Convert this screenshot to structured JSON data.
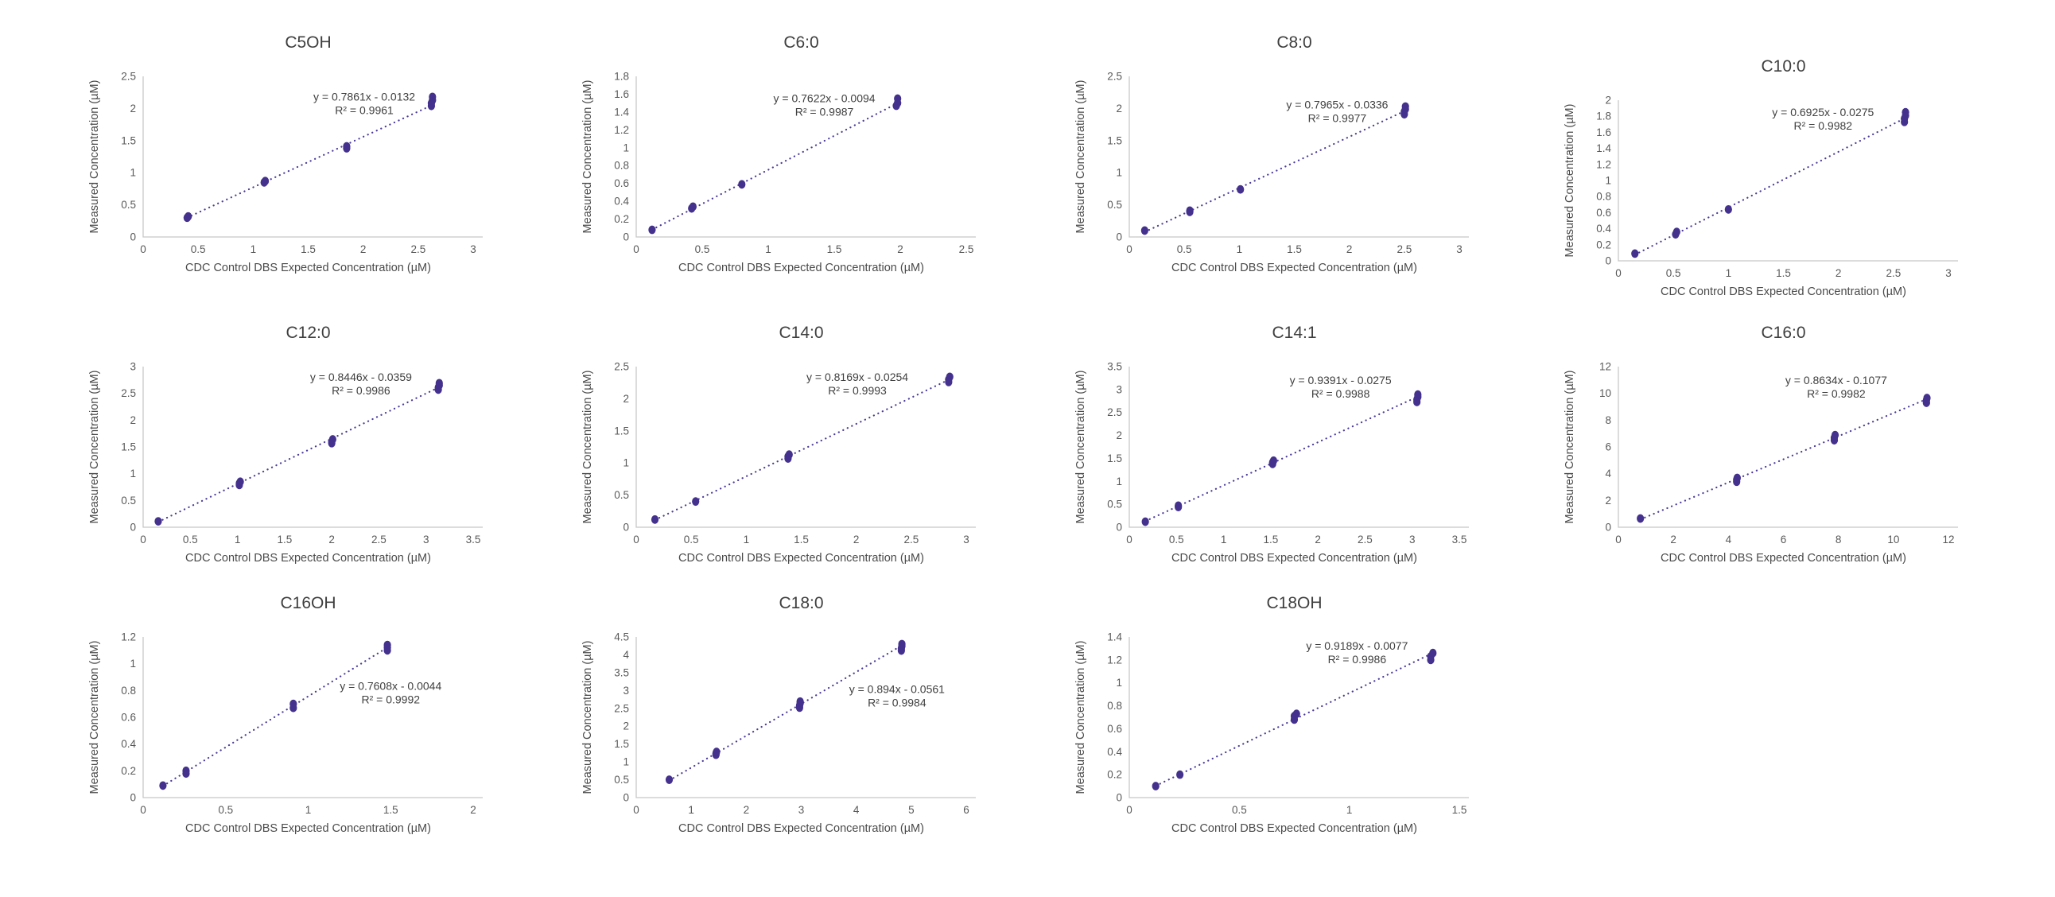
{
  "figure": {
    "background": "#ffffff",
    "description_labels": {
      "xlabel": "CDC Control DBS Expected Concentration (µM)",
      "ylabel": "Measured Concentration (µM)"
    }
  },
  "colors": {
    "marker": "#44318e",
    "trendline": "#4c3a99",
    "axis_line": "#c8c8c8",
    "tick_text": "#595959",
    "title_text": "#3f3f3f",
    "annotation_text": "#3f3f3f"
  },
  "chart_data": [
    {
      "type": "scatter",
      "title": "C5OH",
      "equation": "y = 0.7861x - 0.0132",
      "r2": "R² = 0.9961",
      "slope": 0.7861,
      "intercept": -0.0132,
      "xlabel": "CDC Control DBS Expected Concentration (µM)",
      "ylabel": "Measured Concentration (µM)",
      "xlim": [
        0,
        3
      ],
      "xstep": 0.5,
      "ylim": [
        0,
        2.5
      ],
      "ystep": 0.5,
      "grid": false,
      "points": [
        [
          0.4,
          0.3
        ],
        [
          0.41,
          0.32
        ],
        [
          1.1,
          0.85
        ],
        [
          1.11,
          0.87
        ],
        [
          1.85,
          1.38
        ],
        [
          1.85,
          1.41
        ],
        [
          2.62,
          2.04
        ],
        [
          2.62,
          2.08
        ],
        [
          2.63,
          2.13
        ],
        [
          2.63,
          2.18
        ]
      ],
      "trend_x": [
        0.4,
        2.6
      ],
      "ann_pos": [
        0.67,
        0.15
      ],
      "pos": [
        95,
        30
      ]
    },
    {
      "type": "scatter",
      "title": "C6:0",
      "equation": "y = 0.7622x - 0.0094",
      "r2": "R² = 0.9987",
      "slope": 0.7622,
      "intercept": -0.0094,
      "xlabel": "CDC Control DBS Expected Concentration (µM)",
      "ylabel": "Measured Concentration (µM)",
      "xlim": [
        0,
        2.5
      ],
      "xstep": 0.5,
      "ylim": [
        0,
        1.8
      ],
      "ystep": 0.2,
      "grid": false,
      "points": [
        [
          0.12,
          0.08
        ],
        [
          0.42,
          0.32
        ],
        [
          0.43,
          0.34
        ],
        [
          0.8,
          0.59
        ],
        [
          1.97,
          1.47
        ],
        [
          1.98,
          1.5
        ],
        [
          1.98,
          1.55
        ]
      ],
      "trend_x": [
        0.12,
        1.96
      ],
      "ann_pos": [
        0.57,
        0.16
      ],
      "pos": [
        715,
        30
      ]
    },
    {
      "type": "scatter",
      "title": "C8:0",
      "equation": "y = 0.7965x - 0.0336",
      "r2": "R² = 0.9977",
      "slope": 0.7965,
      "intercept": -0.0336,
      "xlabel": "CDC Control DBS Expected Concentration (µM)",
      "ylabel": "Measured Concentration (µM)",
      "xlim": [
        0,
        3
      ],
      "xstep": 0.5,
      "ylim": [
        0,
        2.5
      ],
      "ystep": 0.5,
      "grid": false,
      "points": [
        [
          0.14,
          0.1
        ],
        [
          0.55,
          0.39
        ],
        [
          0.55,
          0.41
        ],
        [
          1.01,
          0.74
        ],
        [
          2.5,
          1.91
        ],
        [
          2.5,
          1.95
        ],
        [
          2.51,
          1.99
        ],
        [
          2.51,
          2.03
        ]
      ],
      "trend_x": [
        0.14,
        2.48
      ],
      "ann_pos": [
        0.63,
        0.2
      ],
      "pos": [
        1335,
        30
      ]
    },
    {
      "type": "scatter",
      "title": "C10:0",
      "equation": "y = 0.6925x - 0.0275",
      "r2": "R² = 0.9982",
      "slope": 0.6925,
      "intercept": -0.0275,
      "xlabel": "CDC Control DBS Expected Concentration (µM)",
      "ylabel": "Measured Concentration (µM)",
      "xlim": [
        0,
        3
      ],
      "xstep": 0.5,
      "ylim": [
        0,
        2
      ],
      "ystep": 0.2,
      "grid": false,
      "points": [
        [
          0.15,
          0.09
        ],
        [
          0.52,
          0.33
        ],
        [
          0.53,
          0.36
        ],
        [
          1.0,
          0.64
        ],
        [
          2.6,
          1.73
        ],
        [
          2.6,
          1.77
        ],
        [
          2.61,
          1.81
        ],
        [
          2.61,
          1.85
        ]
      ],
      "trend_x": [
        0.15,
        2.58
      ],
      "ann_pos": [
        0.62,
        0.1
      ],
      "pos": [
        1950,
        60
      ]
    },
    {
      "type": "scatter",
      "title": "C12:0",
      "equation": "y = 0.8446x - 0.0359",
      "r2": "R² = 0.9986",
      "slope": 0.8446,
      "intercept": -0.0359,
      "xlabel": "CDC Control DBS Expected Concentration (µM)",
      "ylabel": "Measured Concentration (µM)",
      "xlim": [
        0,
        3.5
      ],
      "xstep": 0.5,
      "ylim": [
        0,
        3
      ],
      "ystep": 0.5,
      "grid": false,
      "points": [
        [
          0.16,
          0.11
        ],
        [
          1.02,
          0.79
        ],
        [
          1.02,
          0.82
        ],
        [
          1.03,
          0.85
        ],
        [
          2.0,
          1.57
        ],
        [
          2.0,
          1.6
        ],
        [
          2.01,
          1.64
        ],
        [
          3.13,
          2.57
        ],
        [
          3.13,
          2.61
        ],
        [
          3.14,
          2.65
        ],
        [
          3.14,
          2.69
        ]
      ],
      "trend_x": [
        0.16,
        3.1
      ],
      "ann_pos": [
        0.66,
        0.09
      ],
      "pos": [
        95,
        395
      ]
    },
    {
      "type": "scatter",
      "title": "C14:0",
      "equation": "y = 0.8169x - 0.0254",
      "r2": "R² = 0.9993",
      "slope": 0.8169,
      "intercept": -0.0254,
      "xlabel": "CDC Control DBS Expected Concentration (µM)",
      "ylabel": "Measured Concentration (µM)",
      "xlim": [
        0,
        3
      ],
      "xstep": 0.5,
      "ylim": [
        0,
        2.5
      ],
      "ystep": 0.5,
      "grid": false,
      "points": [
        [
          0.17,
          0.12
        ],
        [
          0.54,
          0.4
        ],
        [
          1.38,
          1.07
        ],
        [
          1.38,
          1.1
        ],
        [
          1.39,
          1.13
        ],
        [
          2.84,
          2.26
        ],
        [
          2.84,
          2.3
        ],
        [
          2.85,
          2.34
        ]
      ],
      "trend_x": [
        0.17,
        2.82
      ],
      "ann_pos": [
        0.67,
        0.09
      ],
      "pos": [
        715,
        395
      ]
    },
    {
      "type": "scatter",
      "title": "C14:1",
      "equation": "y = 0.9391x - 0.0275",
      "r2": "R² = 0.9988",
      "slope": 0.9391,
      "intercept": -0.0275,
      "xlabel": "CDC Control DBS Expected Concentration (µM)",
      "ylabel": "Measured Concentration (µM)",
      "xlim": [
        0,
        3.5
      ],
      "xstep": 0.5,
      "ylim": [
        0,
        3.5
      ],
      "ystep": 0.5,
      "grid": false,
      "points": [
        [
          0.17,
          0.12
        ],
        [
          0.52,
          0.44
        ],
        [
          0.52,
          0.47
        ],
        [
          1.52,
          1.38
        ],
        [
          1.52,
          1.41
        ],
        [
          1.53,
          1.45
        ],
        [
          3.05,
          2.73
        ],
        [
          3.05,
          2.78
        ],
        [
          3.06,
          2.84
        ],
        [
          3.06,
          2.89
        ]
      ],
      "trend_x": [
        0.17,
        3.02
      ],
      "ann_pos": [
        0.64,
        0.11
      ],
      "pos": [
        1335,
        395
      ]
    },
    {
      "type": "scatter",
      "title": "C16:0",
      "equation": "y = 0.8634x - 0.1077",
      "r2": "R² = 0.9982",
      "slope": 0.8634,
      "intercept": -0.1077,
      "xlabel": "CDC Control DBS Expected Concentration (µM)",
      "ylabel": "Measured Concentration (µM)",
      "xlim": [
        0,
        12
      ],
      "xstep": 2,
      "ylim": [
        0,
        12
      ],
      "ystep": 2,
      "grid": false,
      "points": [
        [
          0.8,
          0.65
        ],
        [
          4.3,
          3.4
        ],
        [
          4.3,
          3.55
        ],
        [
          4.32,
          3.68
        ],
        [
          7.85,
          6.5
        ],
        [
          7.85,
          6.68
        ],
        [
          7.88,
          6.88
        ],
        [
          11.2,
          9.3
        ],
        [
          11.2,
          9.48
        ],
        [
          11.22,
          9.65
        ]
      ],
      "trend_x": [
        0.8,
        11.1
      ],
      "ann_pos": [
        0.66,
        0.11
      ],
      "pos": [
        1950,
        395
      ]
    },
    {
      "type": "scatter",
      "title": "C16OH",
      "equation": "y = 0.7608x - 0.0044",
      "r2": "R² = 0.9992",
      "slope": 0.7608,
      "intercept": -0.0044,
      "xlabel": "CDC Control DBS Expected Concentration (µM)",
      "ylabel": "Measured Concentration (µM)",
      "xlim": [
        0,
        2
      ],
      "xstep": 0.5,
      "ylim": [
        0,
        1.2
      ],
      "ystep": 0.2,
      "grid": false,
      "points": [
        [
          0.12,
          0.09
        ],
        [
          0.26,
          0.18
        ],
        [
          0.26,
          0.2
        ],
        [
          0.91,
          0.67
        ],
        [
          0.91,
          0.7
        ],
        [
          1.48,
          1.1
        ],
        [
          1.48,
          1.12
        ],
        [
          1.48,
          1.14
        ]
      ],
      "trend_x": [
        0.12,
        1.46
      ],
      "ann_pos": [
        0.75,
        0.33
      ],
      "pos": [
        95,
        735
      ]
    },
    {
      "type": "scatter",
      "title": "C18:0",
      "equation": "y = 0.894x - 0.0561",
      "r2": "R² = 0.9984",
      "slope": 0.894,
      "intercept": -0.0561,
      "xlabel": "CDC Control DBS Expected Concentration (µM)",
      "ylabel": "Measured Concentration (µM)",
      "xlim": [
        0,
        6
      ],
      "xstep": 1,
      "ylim": [
        0,
        4.5
      ],
      "ystep": 0.5,
      "grid": false,
      "points": [
        [
          0.6,
          0.5
        ],
        [
          1.45,
          1.2
        ],
        [
          1.45,
          1.24
        ],
        [
          1.46,
          1.28
        ],
        [
          2.97,
          2.52
        ],
        [
          2.97,
          2.58
        ],
        [
          2.98,
          2.64
        ],
        [
          2.98,
          2.69
        ],
        [
          4.82,
          4.12
        ],
        [
          4.82,
          4.18
        ],
        [
          4.83,
          4.25
        ],
        [
          4.83,
          4.3
        ]
      ],
      "trend_x": [
        0.6,
        4.8
      ],
      "ann_pos": [
        0.79,
        0.35
      ],
      "pos": [
        715,
        735
      ]
    },
    {
      "type": "scatter",
      "title": "C18OH",
      "equation": "y = 0.9189x - 0.0077",
      "r2": "R² = 0.9986",
      "slope": 0.9189,
      "intercept": -0.0077,
      "xlabel": "CDC Control DBS Expected Concentration (µM)",
      "ylabel": "Measured Concentration (µM)",
      "xlim": [
        0,
        1.5
      ],
      "xstep": 0.5,
      "ylim": [
        0,
        1.4
      ],
      "ystep": 0.2,
      "grid": false,
      "points": [
        [
          0.12,
          0.1
        ],
        [
          0.23,
          0.2
        ],
        [
          0.75,
          0.68
        ],
        [
          0.75,
          0.71
        ],
        [
          0.76,
          0.73
        ],
        [
          1.37,
          1.2
        ],
        [
          1.37,
          1.23
        ],
        [
          1.38,
          1.26
        ]
      ],
      "trend_x": [
        0.12,
        1.36
      ],
      "ann_pos": [
        0.69,
        0.08
      ],
      "pos": [
        1335,
        735
      ]
    }
  ]
}
